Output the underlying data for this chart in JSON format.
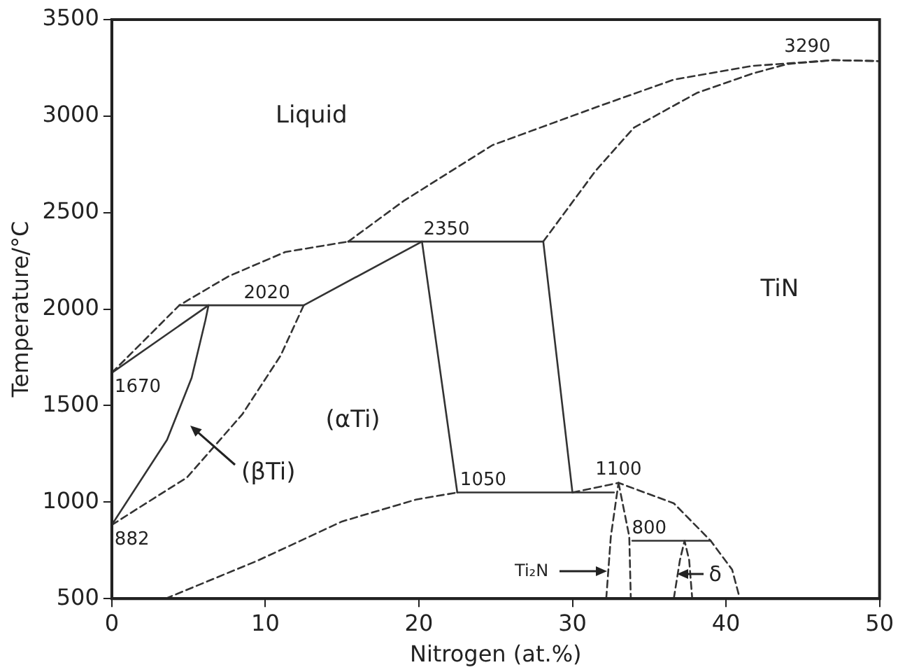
{
  "chart_data": {
    "type": "line",
    "xlabel": "Nitrogen (at.%)",
    "ylabel": "Temperature/°C",
    "xlim": [
      0,
      50
    ],
    "xticks": [
      0,
      10,
      20,
      30,
      40,
      50
    ],
    "ylim": [
      500,
      3500
    ],
    "yticks": [
      500,
      1000,
      1500,
      2000,
      2500,
      3000,
      3500
    ],
    "grid": false,
    "legend": false,
    "marker": "none",
    "series": [
      {
        "color": "#333333",
        "line_style": "dashed",
        "x": [
          0,
          4.4,
          7.6,
          11.3,
          15.4
        ],
        "values": [
          1670,
          2020,
          2170,
          2296,
          2350
        ]
      },
      {
        "color": "#333333",
        "line_style": "dashed",
        "x": [
          15.4,
          19,
          24.8,
          31.5,
          36.6,
          41.7,
          47,
          50
        ],
        "values": [
          2350,
          2560,
          2850,
          3045,
          3189,
          3260,
          3290,
          3285
        ]
      },
      {
        "color": "#333333",
        "line_style": "dashed",
        "x": [
          28.1,
          31.5,
          34,
          38.1,
          41.7,
          44,
          47,
          50
        ],
        "values": [
          2350,
          2716,
          2940,
          3120,
          3220,
          3270,
          3290,
          3285
        ]
      },
      {
        "color": "#333333",
        "line_style": "solid",
        "x": [
          4.4,
          12.5
        ],
        "values": [
          2020,
          2020
        ]
      },
      {
        "color": "#333333",
        "line_style": "solid",
        "x": [
          0,
          6.3
        ],
        "values": [
          1670,
          2020
        ]
      },
      {
        "color": "#333333",
        "line_style": "solid",
        "x": [
          0,
          3.6,
          5.2,
          6.1,
          6.3
        ],
        "values": [
          882,
          1323,
          1644,
          1943,
          2020
        ]
      },
      {
        "color": "#333333",
        "line_style": "dashed",
        "x": [
          0,
          4.9,
          8.5,
          11,
          12.5
        ],
        "values": [
          882,
          1128,
          1455,
          1760,
          2020
        ]
      },
      {
        "color": "#333333",
        "line_style": "solid",
        "x": [
          12.5,
          20.2
        ],
        "values": [
          2020,
          2350
        ]
      },
      {
        "color": "#333333",
        "line_style": "solid",
        "x": [
          15.4,
          28.1
        ],
        "values": [
          2350,
          2350
        ]
      },
      {
        "color": "#333333",
        "line_style": "solid",
        "x": [
          20.2,
          22.5
        ],
        "values": [
          2350,
          1050
        ]
      },
      {
        "color": "#333333",
        "line_style": "solid",
        "x": [
          28.1,
          30
        ],
        "values": [
          2350,
          1050
        ]
      },
      {
        "color": "#333333",
        "line_style": "solid",
        "x": [
          22.5,
          32.7
        ],
        "values": [
          1050,
          1050
        ]
      },
      {
        "color": "#333333",
        "line_style": "dashed",
        "x": [
          3.5,
          9.5,
          15,
          19.8,
          22.5
        ],
        "values": [
          500,
          697,
          900,
          1013,
          1050
        ]
      },
      {
        "color": "#333333",
        "line_style": "dashed",
        "x": [
          30,
          33,
          36.6,
          39,
          40.4,
          40.9
        ],
        "values": [
          1050,
          1100,
          994,
          800,
          650,
          500
        ]
      },
      {
        "color": "#333333",
        "line_style": "dashed",
        "x": [
          32.2,
          32.5,
          33
        ],
        "values": [
          500,
          822,
          1100
        ]
      },
      {
        "color": "#333333",
        "line_style": "dashed",
        "x": [
          33,
          33.7,
          33.8
        ],
        "values": [
          1100,
          822,
          500
        ]
      },
      {
        "color": "#333333",
        "line_style": "solid",
        "x": [
          33.9,
          39
        ],
        "values": [
          800,
          800
        ]
      },
      {
        "color": "#333333",
        "line_style": "dashed",
        "x": [
          36.6,
          37,
          37.3,
          37.6,
          37.8
        ],
        "values": [
          500,
          700,
          800,
          700,
          500
        ]
      }
    ],
    "annotations": [
      "Liquid",
      "TiN",
      "(αTi)",
      "(βTi)",
      {
        "text": "Ti₂N",
        "x": 32.35,
        "y": 640
      },
      "δ",
      {
        "text": "3290",
        "x": 45.3,
        "y": 3290
      },
      {
        "text": "2350",
        "x": 21.8,
        "y": 2350
      },
      {
        "text": "2020",
        "x": 10.1,
        "y": 2020
      },
      {
        "text": "1670",
        "x": 0,
        "y": 1670
      },
      {
        "text": "882",
        "x": 0,
        "y": 882
      },
      {
        "text": "1050",
        "x": 22.5,
        "y": 1050
      },
      {
        "text": "1100",
        "x": 33,
        "y": 1100
      },
      {
        "text": "800",
        "x": 35,
        "y": 800
      }
    ]
  }
}
